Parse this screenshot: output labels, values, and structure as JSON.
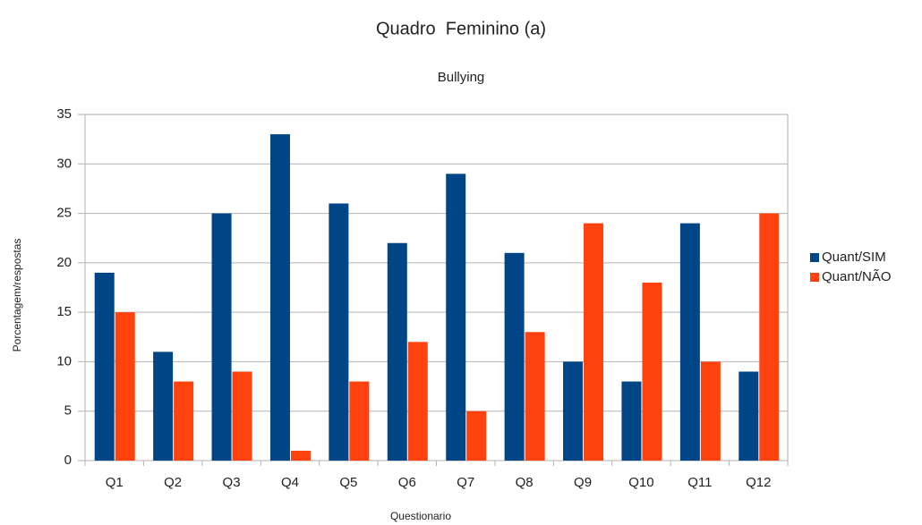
{
  "chart_data": {
    "type": "bar",
    "title": "Quadro  Feminino (a)",
    "subtitle": "Bullying",
    "x_label": "Questionario",
    "y_label": "Porcentagem/respostas",
    "categories": [
      "Q1",
      "Q2",
      "Q3",
      "Q4",
      "Q5",
      "Q6",
      "Q7",
      "Q8",
      "Q9",
      "Q10",
      "Q11",
      "Q12"
    ],
    "series": [
      {
        "name": "Quant/SIM",
        "color": "#004586",
        "values": [
          19,
          11,
          25,
          33,
          26,
          22,
          29,
          21,
          10,
          8,
          24,
          9
        ]
      },
      {
        "name": "Quant/NÃO",
        "color": "#ff420e",
        "values": [
          15,
          8,
          9,
          1,
          8,
          12,
          5,
          13,
          24,
          18,
          10,
          25
        ]
      }
    ],
    "ylim": [
      0,
      35
    ],
    "yticks": [
      0,
      5,
      10,
      15,
      20,
      25,
      30,
      35
    ],
    "grid": true,
    "legend": "right"
  }
}
